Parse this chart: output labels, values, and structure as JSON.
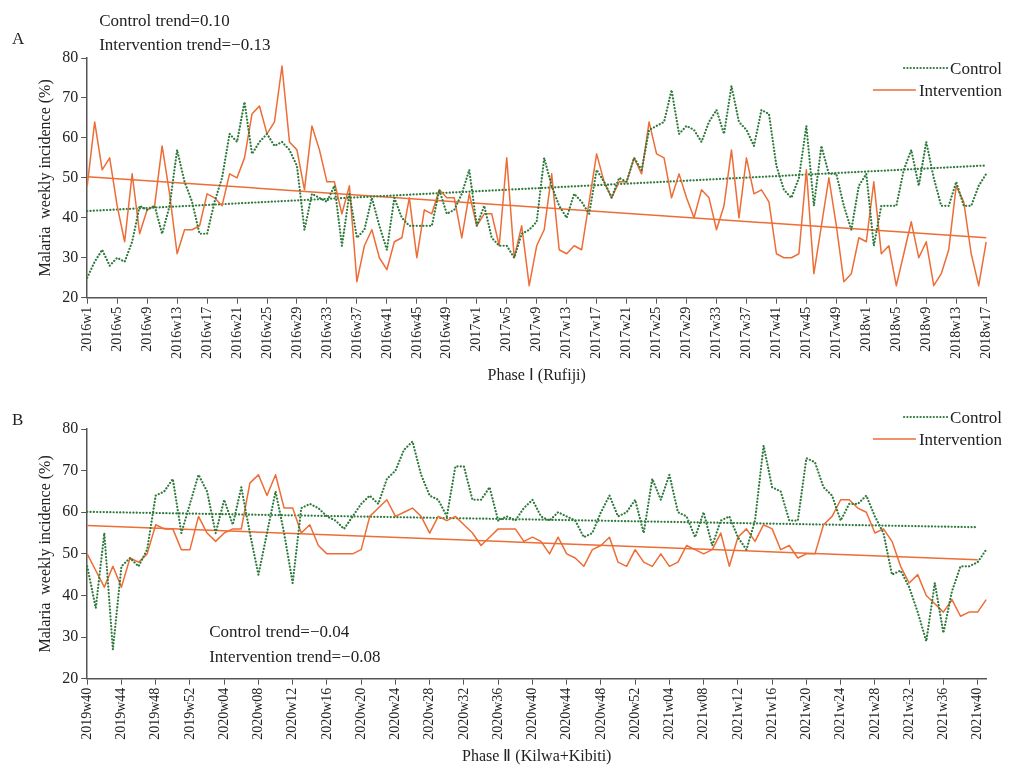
{
  "chart_data": [
    {
      "type": "line",
      "title": "A",
      "xlabel": "Phase Ⅰ (Rufiji)",
      "ylabel": "Malaria  weekly incidence (%)",
      "annotations": [
        "Control trend=0.10",
        "Intervention trend=−0.13"
      ],
      "legend": "top right",
      "ylim": [
        20,
        80
      ],
      "yticks": [
        20,
        30,
        40,
        50,
        60,
        70,
        80
      ],
      "categories": [
        "2016w1",
        null,
        null,
        null,
        "2016w5",
        null,
        null,
        null,
        "2016w9",
        null,
        null,
        null,
        "2016w13",
        null,
        null,
        null,
        "2016w17",
        null,
        null,
        null,
        "2016w21",
        null,
        null,
        null,
        "2016w25",
        null,
        null,
        null,
        "2016w29",
        null,
        null,
        null,
        "2016w33",
        null,
        null,
        null,
        "2016w37",
        null,
        null,
        null,
        "2016w41",
        null,
        null,
        null,
        "2016w45",
        null,
        null,
        null,
        "2016w49",
        null,
        null,
        null,
        "2017w1",
        null,
        null,
        null,
        "2017w5",
        null,
        null,
        null,
        "2017w9",
        null,
        null,
        null,
        "2017w13",
        null,
        null,
        null,
        "2017w17",
        null,
        null,
        null,
        "2017w21",
        null,
        null,
        null,
        "2017w25",
        null,
        null,
        null,
        "2017w29",
        null,
        null,
        null,
        "2017w33",
        null,
        null,
        null,
        "2017w37",
        null,
        null,
        null,
        "2017w41",
        null,
        null,
        null,
        "2017w45",
        null,
        null,
        null,
        "2017w49",
        null,
        null,
        null,
        "2018w1",
        null,
        null,
        null,
        "2018w5",
        null,
        null,
        null,
        "2018w9",
        null,
        null,
        null,
        "2018w13",
        null,
        null,
        null,
        "2018w17"
      ],
      "series": [
        {
          "name": "Control",
          "color": "#2f7a3c",
          "line_style": "dotted",
          "values": [
            25,
            29,
            32,
            28,
            30,
            29,
            34,
            43,
            42,
            43,
            36,
            43,
            57,
            49,
            44,
            36,
            36,
            44,
            50,
            61,
            59,
            69,
            56,
            59,
            61,
            58,
            59,
            57,
            53,
            37,
            46,
            45,
            44,
            48,
            33,
            46,
            35,
            37,
            45,
            38,
            32,
            45,
            40,
            38,
            38,
            38,
            38,
            47,
            41,
            42,
            46,
            52,
            38,
            43,
            35,
            33,
            33,
            30,
            36,
            37,
            39,
            55,
            48,
            43,
            40,
            46,
            44,
            41,
            52,
            49,
            45,
            50,
            49,
            55,
            52,
            62,
            63,
            64,
            72,
            61,
            63,
            62,
            59,
            64,
            67,
            61,
            73,
            64,
            62,
            58,
            67,
            66,
            53,
            47,
            45,
            50,
            63,
            43,
            58,
            51,
            51,
            43,
            37,
            48,
            51,
            33,
            43,
            43,
            43,
            52,
            57,
            48,
            59,
            50,
            43,
            43,
            49,
            43,
            43,
            48,
            51
          ]
        },
        {
          "name": "Intervention",
          "color": "#ee6c35",
          "line_style": "solid",
          "values": [
            48,
            64,
            52,
            55,
            43,
            34,
            51,
            36,
            42,
            43,
            58,
            46,
            31,
            37,
            37,
            38,
            46,
            45,
            43,
            51,
            50,
            55,
            66,
            68,
            61,
            64,
            78,
            59,
            57,
            47,
            63,
            57,
            49,
            49,
            41,
            48,
            24,
            33,
            37,
            30,
            27,
            34,
            35,
            45,
            30,
            42,
            41,
            47,
            45,
            45,
            35,
            46,
            38,
            41,
            41,
            33,
            55,
            30,
            38,
            23,
            33,
            37,
            51,
            32,
            31,
            33,
            32,
            44,
            56,
            49,
            45,
            49,
            49,
            55,
            51,
            64,
            56,
            55,
            45,
            51,
            45,
            40,
            47,
            45,
            37,
            43,
            57,
            40,
            55,
            46,
            47,
            44,
            31,
            30,
            30,
            31,
            52,
            26,
            38,
            50,
            38,
            24,
            26,
            35,
            34,
            49,
            31,
            33,
            23,
            31,
            39,
            30,
            34,
            23,
            26,
            32,
            48,
            44,
            31,
            23,
            34
          ]
        },
        {
          "type": "line",
          "color": "#2f7a3c",
          "line_style": "dotted",
          "x": [
            "2016w1",
            "2018w17"
          ],
          "values": [
            41.7,
            53.1
          ]
        },
        {
          "type": "line",
          "color": "#ee6c35",
          "line_style": "solid",
          "x": [
            "2016w1",
            "2018w17"
          ],
          "values": [
            50.3,
            35
          ]
        }
      ]
    },
    {
      "type": "line",
      "title": "B",
      "xlabel": "Phase Ⅱ (Kilwa+Kibiti)",
      "ylabel": "Malaria  weekly incidence (%)",
      "annotations": [
        "Control trend=−0.04",
        "Intervention trend=−0.08"
      ],
      "legend": "top right",
      "ylim": [
        20,
        80
      ],
      "yticks": [
        20,
        30,
        40,
        50,
        60,
        70,
        80
      ],
      "categories": [
        "2019w40",
        null,
        null,
        null,
        "2019w44",
        null,
        null,
        null,
        "2019w48",
        null,
        null,
        null,
        "2019w52",
        null,
        null,
        null,
        "2020w04",
        null,
        null,
        null,
        "2020w08",
        null,
        null,
        null,
        "2020w12",
        null,
        null,
        null,
        "2020w16",
        null,
        null,
        null,
        "2020w20",
        null,
        null,
        null,
        "2020w24",
        null,
        null,
        null,
        "2020w28",
        null,
        null,
        null,
        "2020w32",
        null,
        null,
        null,
        "2020w36",
        null,
        null,
        null,
        "2020w40",
        null,
        null,
        null,
        "2020w44",
        null,
        null,
        null,
        "2020w48",
        null,
        null,
        null,
        "2020w52",
        null,
        null,
        null,
        "2021w04",
        null,
        null,
        null,
        "2021w08",
        null,
        null,
        null,
        "2021w12",
        null,
        null,
        null,
        "2021w16",
        null,
        null,
        null,
        "2021w20",
        null,
        null,
        null,
        "2021w24",
        null,
        null,
        null,
        "2021w28",
        null,
        null,
        null,
        "2021w32",
        null,
        null,
        null,
        "2021w36",
        null,
        null,
        null,
        "2021w40",
        null
      ],
      "series": [
        {
          "name": "Control",
          "color": "#2f7a3c",
          "line_style": "dotted",
          "values": [
            47,
            37,
            55,
            27,
            47,
            49,
            47,
            51,
            64,
            65,
            68,
            55,
            62,
            69,
            65,
            55,
            63,
            57,
            66,
            55,
            45,
            55,
            65,
            55,
            43,
            61,
            62,
            61,
            59,
            58,
            56,
            59,
            62,
            64,
            62,
            68,
            70,
            75,
            77,
            69,
            64,
            63,
            59,
            71,
            71,
            63,
            63,
            66,
            58,
            59,
            58,
            61,
            63,
            59,
            58,
            60,
            59,
            58,
            54,
            55,
            60,
            64,
            59,
            60,
            63,
            55,
            68,
            63,
            69,
            60,
            59,
            54,
            60,
            52,
            58,
            59,
            54,
            51,
            58,
            76,
            66,
            65,
            58,
            58,
            73,
            72,
            66,
            64,
            58,
            62,
            62,
            64,
            59,
            55,
            45,
            46,
            42,
            36,
            29,
            43,
            31,
            41,
            47,
            47,
            48,
            51
          ]
        },
        {
          "name": "Intervention",
          "color": "#ee6c35",
          "line_style": "solid",
          "values": [
            50,
            46,
            42,
            47,
            42,
            49,
            48,
            50,
            57,
            56,
            56,
            51,
            51,
            59,
            55,
            53,
            55,
            56,
            56,
            67,
            69,
            64,
            69,
            61,
            61,
            55,
            57,
            52,
            50,
            50,
            50,
            50,
            51,
            59,
            61,
            63,
            59,
            60,
            61,
            59,
            55,
            59,
            58,
            59,
            57,
            55,
            52,
            54,
            56,
            56,
            56,
            53,
            54,
            53,
            50,
            54,
            50,
            49,
            47,
            51,
            52,
            54,
            48,
            47,
            51,
            48,
            47,
            50,
            47,
            48,
            52,
            51,
            50,
            51,
            55,
            47,
            54,
            56,
            53,
            57,
            56,
            51,
            52,
            49,
            50,
            50,
            57,
            59,
            63,
            63,
            61,
            60,
            55,
            56,
            53,
            47,
            43,
            45,
            40,
            38,
            36,
            39,
            35,
            36,
            36,
            39
          ]
        },
        {
          "type": "line",
          "color": "#2f7a3c",
          "line_style": "dotted",
          "x": [
            "2019w40",
            "2021w40"
          ],
          "values": [
            60.1,
            56.4
          ]
        },
        {
          "type": "line",
          "color": "#ee6c35",
          "line_style": "solid",
          "x": [
            "2019w40",
            "2021w40"
          ],
          "values": [
            56.8,
            48.6
          ]
        }
      ]
    }
  ]
}
